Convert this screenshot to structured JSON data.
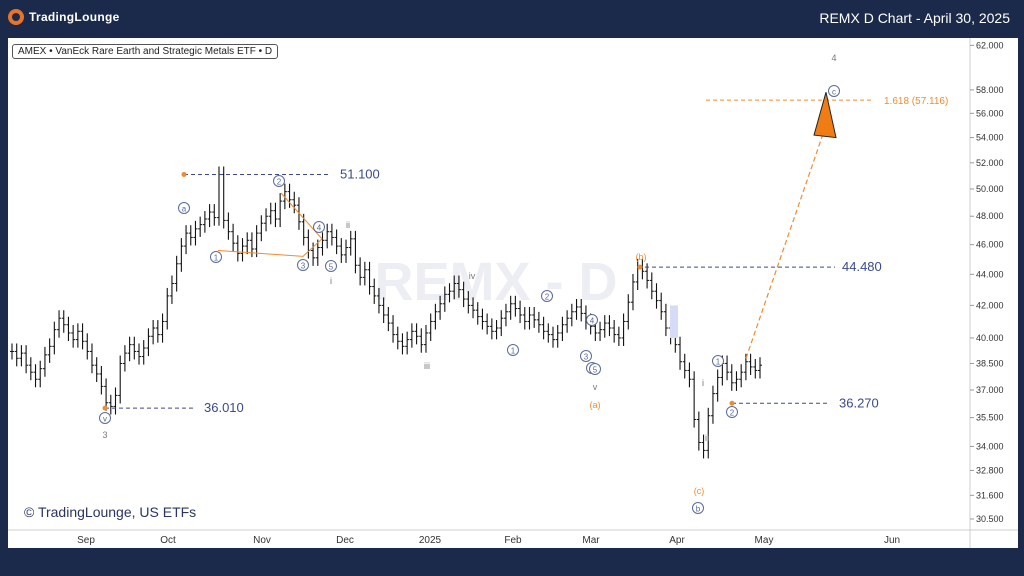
{
  "header": {
    "brand": "TradingLounge",
    "title": "REMX D Chart - April 30, 2025"
  },
  "symbol_label": "AMEX • VanEck Rare Earth and Strategic Metals ETF • D",
  "watermark": "REMX - D",
  "copyright": "© TradingLounge, US ETFs",
  "colors": {
    "frame": "#1b2a4a",
    "accent": "#f08c2e",
    "level_line": "#3a4a8a",
    "wave_label": "#5a6a9a",
    "candle": "#111111"
  },
  "chart_data": {
    "type": "candlestick",
    "y_scale": "log",
    "ylim": [
      30.0,
      62.5
    ],
    "y_ticks": [
      30.5,
      31.6,
      32.8,
      34.0,
      35.5,
      37.0,
      38.5,
      40.0,
      42.0,
      44.0,
      46.0,
      48.0,
      50.0,
      52.0,
      54.0,
      56.0,
      58.0,
      62.0
    ],
    "y_tick_labels": [
      "30.500",
      "31.600",
      "32.800",
      "34.000",
      "35.500",
      "37.000",
      "38.500",
      "40.000",
      "42.000",
      "44.000",
      "46.000",
      "48.000",
      "50.000",
      "52.000",
      "54.000",
      "56.000",
      "58.000",
      "62.000"
    ],
    "x_labels": [
      "Sep",
      "Oct",
      "Nov",
      "Dec",
      "2025",
      "Feb",
      "Mar",
      "Apr",
      "May",
      "Jun"
    ],
    "closes": [
      39.2,
      38.8,
      39.1,
      38.4,
      38.0,
      37.6,
      38.2,
      39.0,
      39.5,
      40.5,
      41.2,
      40.8,
      40.3,
      39.9,
      40.4,
      39.8,
      39.2,
      38.4,
      37.9,
      37.2,
      36.3,
      36.1,
      36.7,
      38.5,
      39.1,
      39.6,
      39.2,
      38.9,
      39.4,
      40.1,
      40.6,
      40.2,
      41.0,
      42.6,
      43.4,
      44.7,
      45.9,
      46.8,
      46.5,
      47.1,
      47.4,
      47.8,
      48.3,
      47.9,
      51.1,
      47.7,
      46.9,
      46.1,
      45.4,
      45.9,
      46.3,
      45.7,
      46.8,
      47.5,
      48.0,
      48.4,
      47.8,
      49.1,
      49.8,
      49.2,
      48.8,
      47.6,
      46.5,
      45.6,
      45.1,
      45.8,
      46.3,
      46.9,
      46.5,
      45.9,
      45.3,
      45.8,
      46.4,
      44.6,
      43.8,
      44.3,
      43.2,
      42.6,
      42.0,
      41.4,
      40.9,
      40.2,
      39.8,
      39.5,
      39.9,
      40.4,
      40.1,
      39.6,
      40.3,
      41.0,
      41.6,
      42.1,
      42.7,
      42.9,
      43.4,
      43.0,
      42.4,
      42.0,
      41.7,
      41.3,
      41.0,
      40.7,
      40.4,
      40.6,
      41.2,
      41.6,
      42.1,
      41.8,
      41.4,
      41.0,
      41.4,
      41.1,
      40.8,
      40.4,
      40.2,
      39.9,
      40.3,
      40.8,
      41.2,
      41.6,
      41.9,
      41.5,
      41.0,
      40.7,
      40.3,
      40.5,
      40.9,
      40.6,
      40.2,
      40.0,
      41.0,
      42.2,
      43.5,
      44.5,
      44.2,
      43.6,
      42.9,
      42.3,
      41.6,
      40.6,
      40.1,
      39.6,
      38.6,
      38.1,
      37.6,
      35.4,
      34.2,
      33.8,
      35.6,
      36.8,
      37.7,
      38.5,
      38.0,
      37.4,
      37.6,
      38.0,
      38.6,
      38.3,
      38.1,
      38.4
    ],
    "levels": [
      {
        "label": "51.100",
        "value": 51.1
      },
      {
        "label": "36.010",
        "value": 36.01
      },
      {
        "label": "44.480",
        "value": 44.48
      },
      {
        "label": "36.270",
        "value": 36.27
      },
      {
        "label": "1.618 (57.116)",
        "value": 57.116
      }
    ],
    "wave_labels": {
      "circled": [
        "a",
        "1",
        "2",
        "3",
        "4",
        "5",
        "ii",
        "i",
        "iii",
        "iv",
        "1",
        "2",
        "1",
        "2",
        "3",
        "4",
        "5",
        "v",
        "b",
        "1",
        "2",
        "c",
        "(b)",
        "(a)",
        "(c)",
        "3",
        "4"
      ],
      "plain": [
        "3",
        "i",
        "ii",
        "iii",
        "iv",
        "v",
        "i",
        "ii",
        "4",
        "(a)",
        "(b)",
        "(c)"
      ]
    }
  }
}
